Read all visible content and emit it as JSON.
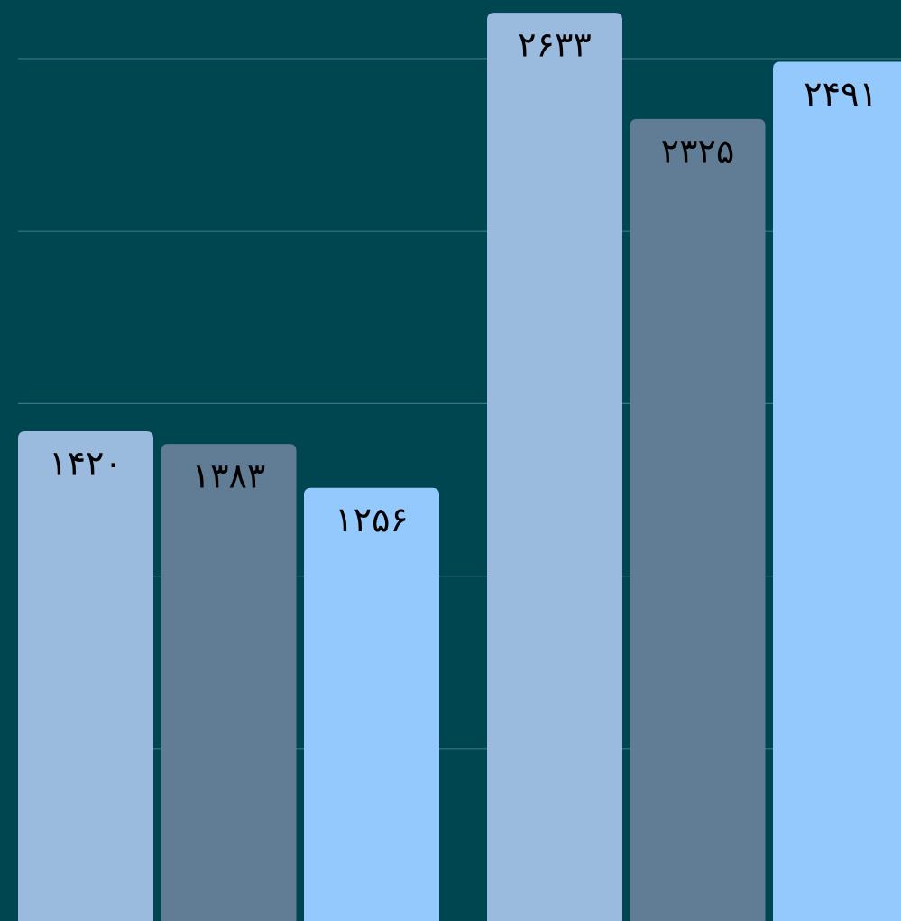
{
  "chart_data": {
    "type": "bar",
    "categories": [
      null,
      null
    ],
    "series": [
      {
        "color": "#9abbde",
        "values": [
          1420,
          2633
        ],
        "value_labels": [
          "۱۴۲۰",
          "۲۶۳۳"
        ]
      },
      {
        "color": "#607d95",
        "values": [
          1383,
          2325
        ],
        "value_labels": [
          "۱۳۸۳",
          "۲۳۲۵"
        ]
      },
      {
        "color": "#94c9fd",
        "values": [
          1256,
          2491
        ],
        "value_labels": [
          "۱۲۵۶",
          "۲۴۹۱"
        ]
      }
    ],
    "ylim": [
      0,
      2670
    ],
    "yticks": [
      500,
      1000,
      1500,
      2000,
      2500
    ],
    "grid": true
  }
}
